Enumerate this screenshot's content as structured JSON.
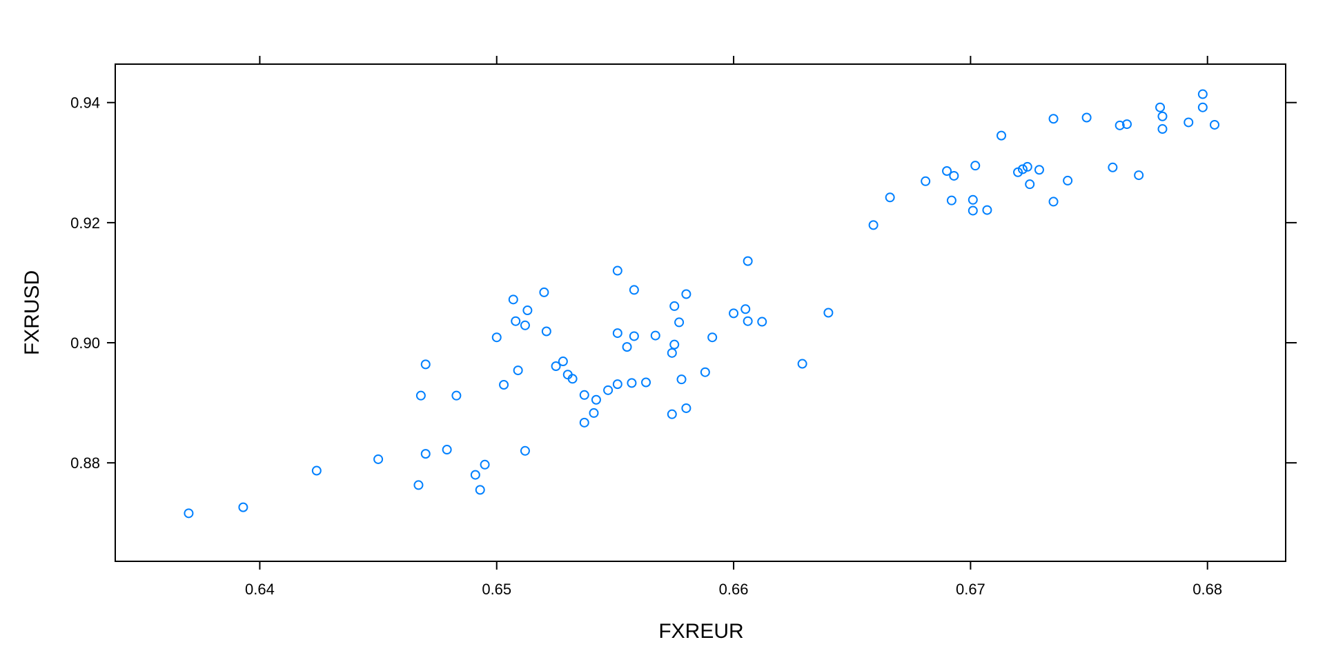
{
  "chart_data": {
    "type": "scatter",
    "xlabel": "FXREUR",
    "ylabel": "FXRUSD",
    "xlim": [
      0.6339,
      0.6833
    ],
    "ylim": [
      0.8636,
      0.9464
    ],
    "x_ticks": [
      0.64,
      0.65,
      0.66,
      0.67,
      0.68
    ],
    "x_tick_labels": [
      "0.64",
      "0.65",
      "0.66",
      "0.67",
      "0.68"
    ],
    "y_ticks": [
      0.88,
      0.9,
      0.92,
      0.94
    ],
    "y_tick_labels": [
      "0.88",
      "0.90",
      "0.92",
      "0.94"
    ],
    "grid": false,
    "marker": "open-circle",
    "point_color": "#0080ff",
    "series": [
      {
        "points": [
          [
            0.637,
            0.8716
          ],
          [
            0.6393,
            0.8726
          ],
          [
            0.6424,
            0.8787
          ],
          [
            0.645,
            0.8806
          ],
          [
            0.6467,
            0.8763
          ],
          [
            0.6468,
            0.8912
          ],
          [
            0.647,
            0.8815
          ],
          [
            0.647,
            0.8964
          ],
          [
            0.6479,
            0.8822
          ],
          [
            0.6483,
            0.8912
          ],
          [
            0.6491,
            0.878
          ],
          [
            0.6493,
            0.8755
          ],
          [
            0.6495,
            0.8797
          ],
          [
            0.65,
            0.9009
          ],
          [
            0.6503,
            0.893
          ],
          [
            0.6507,
            0.9072
          ],
          [
            0.6508,
            0.9036
          ],
          [
            0.6509,
            0.8954
          ],
          [
            0.6512,
            0.9029
          ],
          [
            0.6512,
            0.882
          ],
          [
            0.6513,
            0.9054
          ],
          [
            0.652,
            0.9084
          ],
          [
            0.6521,
            0.9019
          ],
          [
            0.6525,
            0.8961
          ],
          [
            0.6528,
            0.8969
          ],
          [
            0.653,
            0.8947
          ],
          [
            0.6532,
            0.894
          ],
          [
            0.6537,
            0.8913
          ],
          [
            0.6537,
            0.8867
          ],
          [
            0.6541,
            0.8883
          ],
          [
            0.6542,
            0.8905
          ],
          [
            0.6547,
            0.8921
          ],
          [
            0.6551,
            0.9016
          ],
          [
            0.6551,
            0.8931
          ],
          [
            0.6551,
            0.912
          ],
          [
            0.6555,
            0.8993
          ],
          [
            0.6557,
            0.8933
          ],
          [
            0.6558,
            0.9011
          ],
          [
            0.6558,
            0.9088
          ],
          [
            0.6563,
            0.8934
          ],
          [
            0.6567,
            0.9012
          ],
          [
            0.6574,
            0.8983
          ],
          [
            0.6574,
            0.8881
          ],
          [
            0.6575,
            0.9061
          ],
          [
            0.6575,
            0.8997
          ],
          [
            0.6577,
            0.9034
          ],
          [
            0.6578,
            0.8939
          ],
          [
            0.658,
            0.8891
          ],
          [
            0.658,
            0.9081
          ],
          [
            0.6588,
            0.8951
          ],
          [
            0.6591,
            0.9009
          ],
          [
            0.66,
            0.9049
          ],
          [
            0.6605,
            0.9056
          ],
          [
            0.6606,
            0.9036
          ],
          [
            0.6606,
            0.9136
          ],
          [
            0.6612,
            0.9035
          ],
          [
            0.6629,
            0.8965
          ],
          [
            0.664,
            0.905
          ],
          [
            0.6659,
            0.9196
          ],
          [
            0.6666,
            0.9242
          ],
          [
            0.6681,
            0.9269
          ],
          [
            0.669,
            0.9286
          ],
          [
            0.6692,
            0.9237
          ],
          [
            0.6693,
            0.9278
          ],
          [
            0.6701,
            0.9238
          ],
          [
            0.6701,
            0.922
          ],
          [
            0.6702,
            0.9295
          ],
          [
            0.6707,
            0.9221
          ],
          [
            0.6713,
            0.9345
          ],
          [
            0.672,
            0.9284
          ],
          [
            0.6722,
            0.9289
          ],
          [
            0.6724,
            0.9293
          ],
          [
            0.6725,
            0.9264
          ],
          [
            0.6729,
            0.9288
          ],
          [
            0.6735,
            0.9373
          ],
          [
            0.6735,
            0.9235
          ],
          [
            0.6741,
            0.927
          ],
          [
            0.6749,
            0.9375
          ],
          [
            0.676,
            0.9292
          ],
          [
            0.6763,
            0.9362
          ],
          [
            0.6766,
            0.9364
          ],
          [
            0.6771,
            0.9279
          ],
          [
            0.678,
            0.9392
          ],
          [
            0.6781,
            0.9377
          ],
          [
            0.6781,
            0.9356
          ],
          [
            0.6792,
            0.9367
          ],
          [
            0.6798,
            0.9414
          ],
          [
            0.6798,
            0.9392
          ],
          [
            0.6803,
            0.9363
          ]
        ]
      }
    ]
  }
}
